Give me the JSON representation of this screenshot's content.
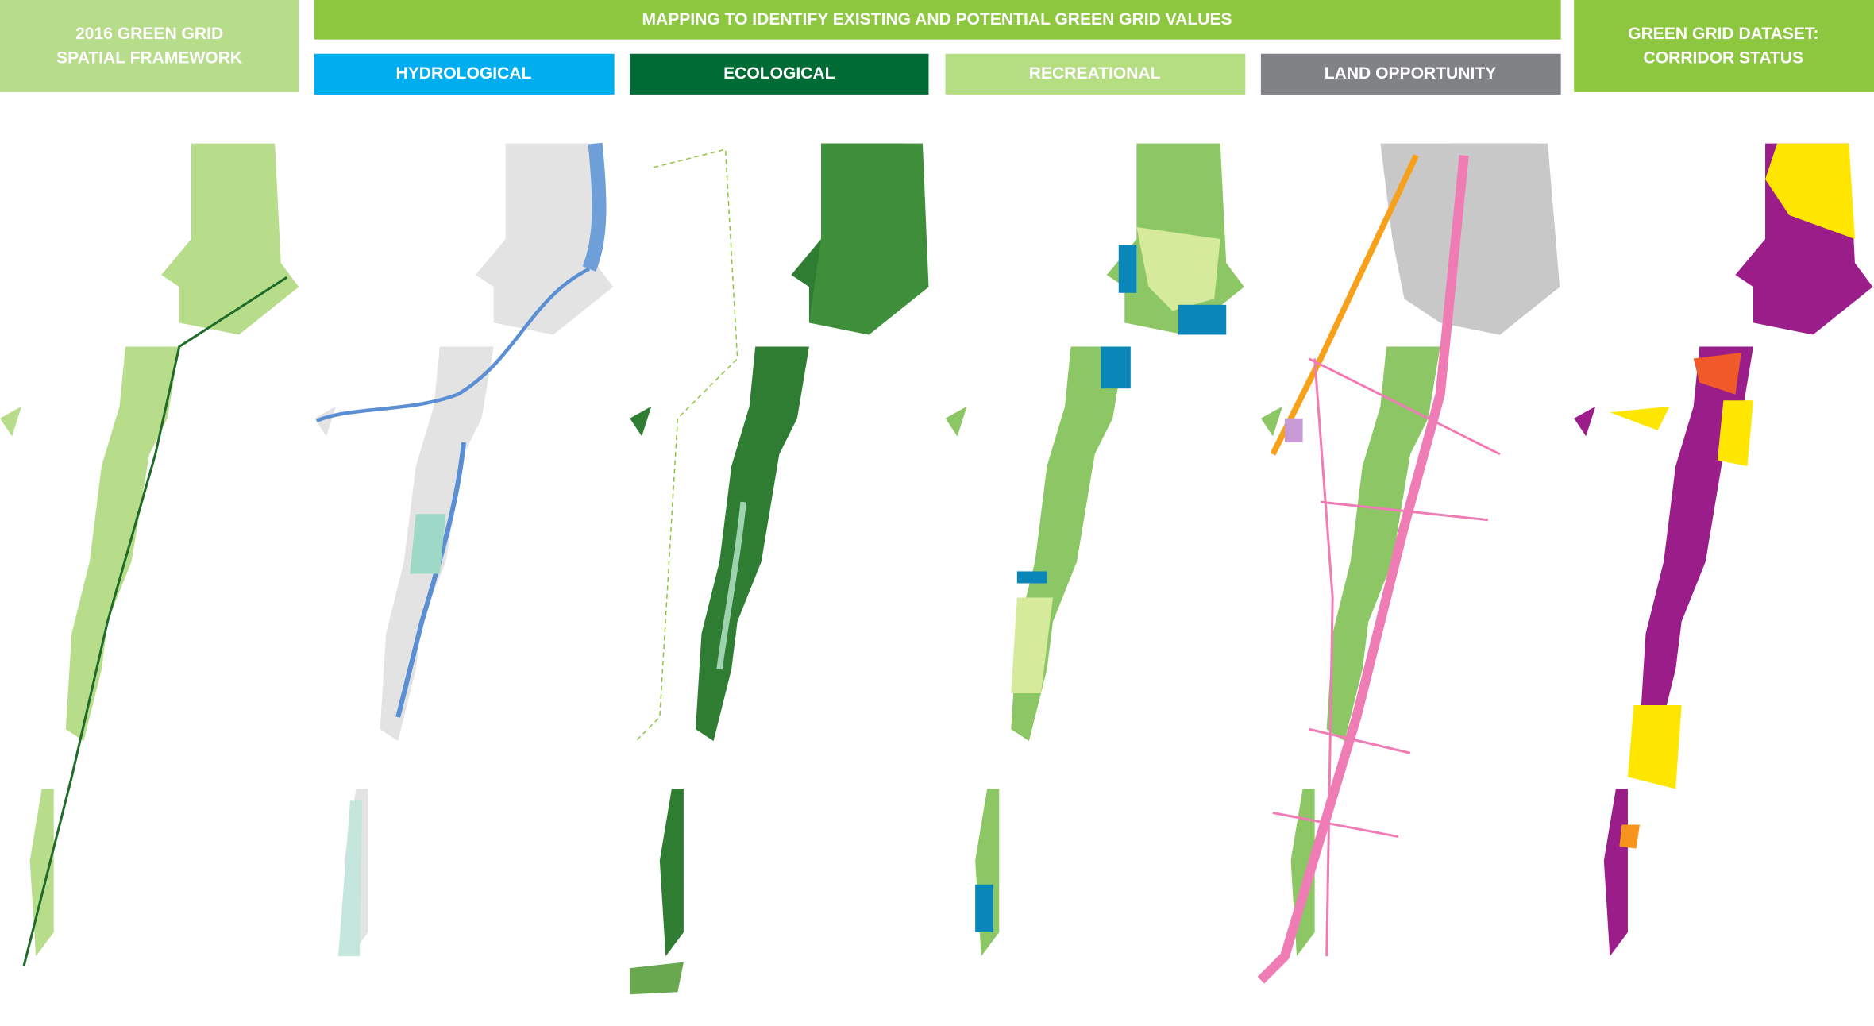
{
  "header": {
    "left": {
      "lines": [
        "2016 GREEN GRID",
        "SPATIAL FRAMEWORK"
      ]
    },
    "top": {
      "title": "MAPPING TO IDENTIFY EXISTING AND POTENTIAL GREEN GRID VALUES"
    },
    "panels": [
      "HYDROLOGICAL",
      "ECOLOGICAL",
      "RECREATIONAL",
      "LAND OPPORTUNITY"
    ],
    "right": {
      "lines": [
        "GREEN GRID DATASET:",
        "CORRIDOR STATUS"
      ]
    }
  }
}
